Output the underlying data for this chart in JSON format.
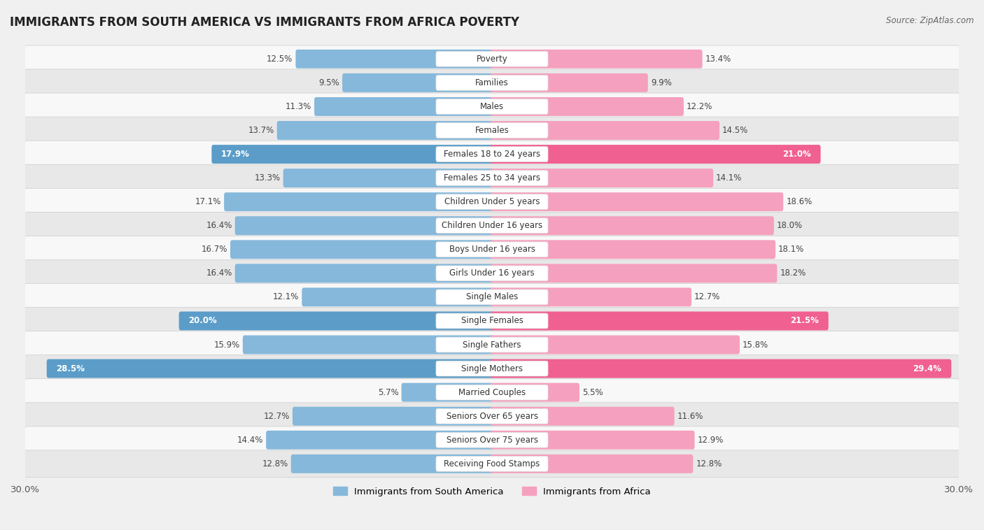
{
  "title": "IMMIGRANTS FROM SOUTH AMERICA VS IMMIGRANTS FROM AFRICA POVERTY",
  "source": "Source: ZipAtlas.com",
  "categories": [
    "Poverty",
    "Families",
    "Males",
    "Females",
    "Females 18 to 24 years",
    "Females 25 to 34 years",
    "Children Under 5 years",
    "Children Under 16 years",
    "Boys Under 16 years",
    "Girls Under 16 years",
    "Single Males",
    "Single Females",
    "Single Fathers",
    "Single Mothers",
    "Married Couples",
    "Seniors Over 65 years",
    "Seniors Over 75 years",
    "Receiving Food Stamps"
  ],
  "south_america": [
    12.5,
    9.5,
    11.3,
    13.7,
    17.9,
    13.3,
    17.1,
    16.4,
    16.7,
    16.4,
    12.1,
    20.0,
    15.9,
    28.5,
    5.7,
    12.7,
    14.4,
    12.8
  ],
  "africa": [
    13.4,
    9.9,
    12.2,
    14.5,
    21.0,
    14.1,
    18.6,
    18.0,
    18.1,
    18.2,
    12.7,
    21.5,
    15.8,
    29.4,
    5.5,
    11.6,
    12.9,
    12.8
  ],
  "south_america_color": "#85b8db",
  "africa_color": "#f5a0be",
  "south_america_highlight_color": "#5b9dc8",
  "africa_highlight_color": "#f06090",
  "highlight_rows": [
    4,
    11,
    13
  ],
  "xlim": 30.0,
  "background_color": "#f0f0f0",
  "row_bg_color_odd": "#f8f8f8",
  "row_bg_color_even": "#e8e8e8",
  "row_border_color": "#cccccc",
  "label_fontsize": 8.5,
  "value_fontsize": 8.5,
  "title_fontsize": 12,
  "legend_labels": [
    "Immigrants from South America",
    "Immigrants from Africa"
  ]
}
